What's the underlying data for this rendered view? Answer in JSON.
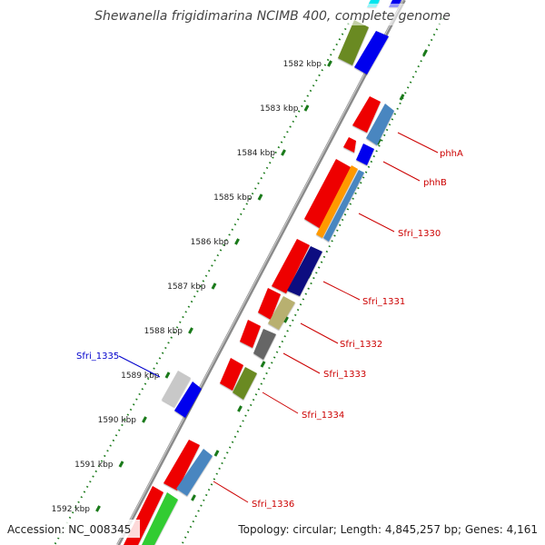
{
  "title": "Shewanella frigidimarina NCIMB 400, complete genome",
  "accession": "Accession: NC_008345",
  "topology": "Topology: circular; Length: 4,845,257 bp; Genes: 4,161",
  "ticks": [
    {
      "label": "1582 kbp"
    },
    {
      "label": "1583 kbp"
    },
    {
      "label": "1584 kbp"
    },
    {
      "label": "1585 kbp"
    },
    {
      "label": "1586 kbp"
    },
    {
      "label": "1587 kbp"
    },
    {
      "label": "1588 kbp"
    },
    {
      "label": "1589 kbp"
    },
    {
      "label": "1590 kbp"
    },
    {
      "label": "1591 kbp"
    },
    {
      "label": "1592 kbp"
    }
  ],
  "gene_labels": [
    {
      "name": "phhA",
      "color": "#cc0000"
    },
    {
      "name": "phhB",
      "color": "#cc0000"
    },
    {
      "name": "Sfri_1330",
      "color": "#cc0000"
    },
    {
      "name": "Sfri_1331",
      "color": "#cc0000"
    },
    {
      "name": "Sfri_1332",
      "color": "#cc0000"
    },
    {
      "name": "Sfri_1333",
      "color": "#cc0000"
    },
    {
      "name": "Sfri_1334",
      "color": "#cc0000"
    },
    {
      "name": "Sfri_1335",
      "color": "#0000cc"
    },
    {
      "name": "Sfri_1336",
      "color": "#cc0000"
    }
  ],
  "colors": {
    "backbone": "#777777",
    "tick": "#1a7a1a",
    "gene_red": "#ee0000",
    "cds_blue": "#0000ee",
    "cds_steelblue": "#4a86c0",
    "cds_olive": "#6a8a20",
    "cds_orange": "#ff9900",
    "cds_navy": "#101080",
    "cds_khaki": "#b8b070",
    "cds_gray": "#666666",
    "cds_lightgray": "#c8c8c8",
    "cds_green": "#33cc33",
    "cds_cyan": "#00e5ee"
  }
}
